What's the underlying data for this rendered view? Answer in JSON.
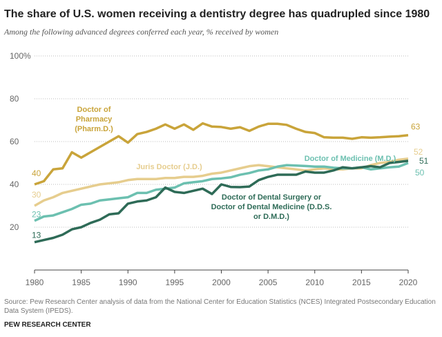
{
  "chart_data": {
    "type": "line",
    "title": "The share of U.S. women receiving a dentistry degree has quadrupled since 1980",
    "subtitle": "Among the following advanced degrees conferred each year, % received by women",
    "x": [
      1980,
      1981,
      1982,
      1983,
      1984,
      1985,
      1986,
      1987,
      1988,
      1989,
      1990,
      1991,
      1992,
      1993,
      1994,
      1995,
      1996,
      1997,
      1998,
      1999,
      2000,
      2001,
      2002,
      2003,
      2004,
      2005,
      2006,
      2007,
      2008,
      2009,
      2010,
      2011,
      2012,
      2013,
      2014,
      2015,
      2016,
      2017,
      2018,
      2019,
      2020
    ],
    "xlim": [
      1980,
      2020
    ],
    "xticks": [
      1980,
      1985,
      1990,
      1995,
      2000,
      2005,
      2010,
      2015,
      2020
    ],
    "ylim": [
      0,
      100
    ],
    "yticks": [
      20,
      40,
      60,
      80,
      {
        "value": 100,
        "label": "100%"
      }
    ],
    "grid": true,
    "series": [
      {
        "name": "Doctor of Pharmacy (Pharm.D.)",
        "color": "#c9a43a",
        "values": [
          40,
          41.5,
          47,
          47.5,
          55,
          52.5,
          55,
          57.5,
          60,
          62.5,
          59.5,
          63.5,
          64.5,
          66,
          68,
          66,
          68,
          65.5,
          68.5,
          67,
          66.8,
          66,
          66.7,
          65,
          67,
          68.3,
          68.3,
          67.8,
          66,
          64.5,
          64,
          62,
          61.8,
          61.8,
          61.3,
          62,
          61.8,
          62,
          62.3,
          62.5,
          63
        ]
      },
      {
        "name": "Juris Doctor (J.D.)",
        "color": "#e6cd8e",
        "values": [
          30,
          32.5,
          34,
          36,
          37,
          38,
          39,
          40,
          40.5,
          41,
          42,
          42.5,
          42.5,
          42.5,
          43,
          43,
          43.5,
          43.5,
          44,
          45,
          45.5,
          46.5,
          47.5,
          48.5,
          49,
          48.5,
          48,
          47.5,
          47,
          46.5,
          47,
          47.5,
          47,
          47,
          47.5,
          47.5,
          49,
          50,
          50.5,
          51.5,
          52
        ]
      },
      {
        "name": "Doctor of Medicine (M.D.)",
        "color": "#6cc0b0",
        "values": [
          23,
          25,
          25.5,
          27,
          28.5,
          30.5,
          31,
          32.5,
          33,
          33.5,
          34,
          36,
          36,
          37.5,
          38,
          38.5,
          40.5,
          41,
          41.5,
          42.5,
          42.8,
          43.3,
          44.5,
          45.3,
          46.5,
          47,
          48.3,
          49,
          48.8,
          48.6,
          48.3,
          48.3,
          47.8,
          47.5,
          47.5,
          48,
          47,
          47.5,
          48,
          48.3,
          50
        ]
      },
      {
        "name": "Doctor of Dental Surgery or Doctor of Dental Medicine (D.D.S. or D.M.D.)",
        "color": "#2e6b57",
        "values": [
          13,
          14,
          15,
          16.5,
          19,
          20,
          22,
          23.5,
          26,
          26.5,
          31,
          32,
          32.5,
          34,
          38.5,
          36.5,
          36,
          37,
          38,
          35.5,
          40,
          38.8,
          38.7,
          39,
          42,
          43.5,
          44.5,
          44.5,
          44.5,
          46,
          45.5,
          45.5,
          46.5,
          48,
          47.5,
          48,
          48.5,
          48,
          50,
          50.5,
          51
        ]
      }
    ],
    "source": "Source: Pew Research Center analysis of data from the National Center for Education Statistics (NCES) Integrated Postsecondary Education Data System (IPEDS).",
    "credit": "PEW RESEARCH CENTER"
  }
}
